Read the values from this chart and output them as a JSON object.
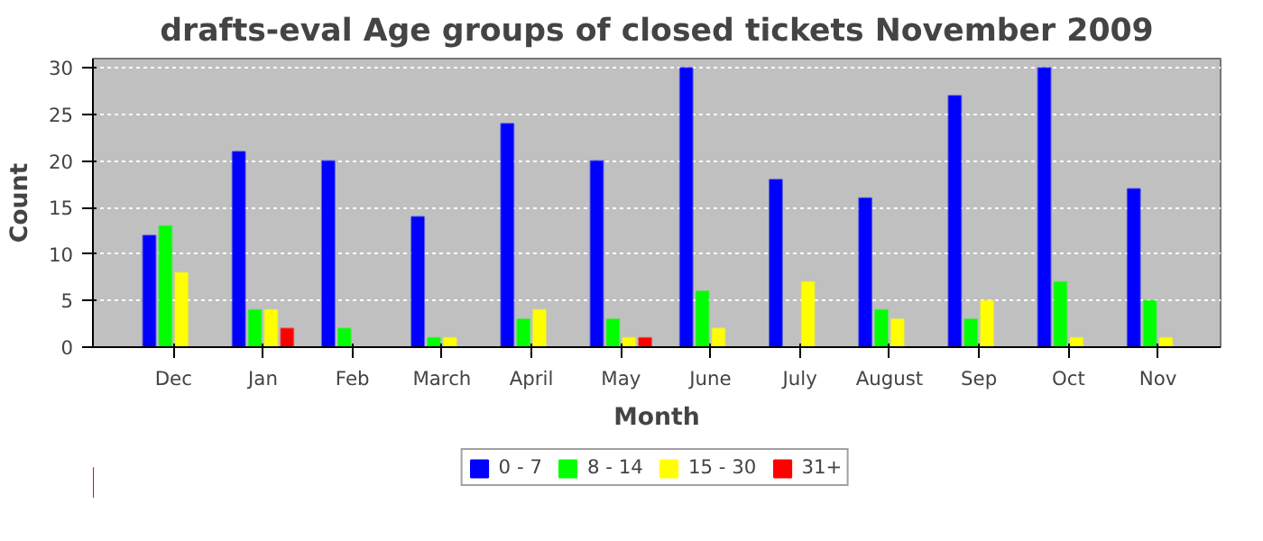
{
  "chart_data": {
    "type": "bar",
    "title": "drafts-eval Age groups of closed tickets November 2009",
    "xlabel": "Month",
    "ylabel": "Count",
    "categories": [
      "Dec",
      "Jan",
      "Feb",
      "March",
      "April",
      "May",
      "June",
      "July",
      "August",
      "Sep",
      "Oct",
      "Nov"
    ],
    "series": [
      {
        "name": "0 - 7",
        "color": "#0000ff",
        "values": [
          12,
          21,
          20,
          14,
          24,
          20,
          30,
          18,
          16,
          27,
          30,
          17
        ]
      },
      {
        "name": "8 - 14",
        "color": "#00ff00",
        "values": [
          13,
          4,
          2,
          1,
          3,
          3,
          6,
          0,
          4,
          3,
          7,
          5
        ]
      },
      {
        "name": "15 - 30",
        "color": "#ffff00",
        "values": [
          8,
          4,
          0,
          1,
          4,
          1,
          2,
          7,
          3,
          5,
          1,
          1
        ]
      },
      {
        "name": "31+",
        "color": "#ff0000",
        "values": [
          0,
          2,
          0,
          0,
          0,
          1,
          0,
          0,
          0,
          0,
          0,
          0
        ]
      }
    ],
    "ylim": [
      0,
      31
    ],
    "yticks": [
      0,
      5,
      10,
      15,
      20,
      25,
      30
    ],
    "grid": "y",
    "legend": "bottom"
  }
}
